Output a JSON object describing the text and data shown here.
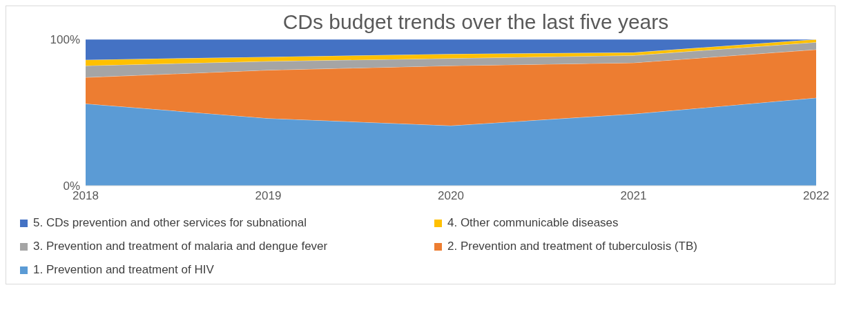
{
  "chart_data": {
    "type": "area",
    "stacked": true,
    "title": "CDs budget trends over the last five years",
    "categories": [
      "2018",
      "2019",
      "2020",
      "2021",
      "2022"
    ],
    "series": [
      {
        "name": "1. Prevention and treatment of HIV",
        "color": "#5b9bd5",
        "values": [
          56,
          46,
          41,
          49,
          60
        ]
      },
      {
        "name": "2. Prevention and treatment of tuberculosis (TB)",
        "color": "#ed7d31",
        "values": [
          18,
          33,
          41,
          35,
          33
        ]
      },
      {
        "name": "3. Prevention and treatment of malaria and dengue fever",
        "color": "#a5a5a5",
        "values": [
          8,
          6,
          5,
          5,
          5
        ]
      },
      {
        "name": "4. Other communicable diseases",
        "color": "#ffc000",
        "values": [
          4,
          3,
          3,
          2,
          2
        ]
      },
      {
        "name": "5. CDs prevention and other services for subnational",
        "color": "#4472c4",
        "values": [
          14,
          12,
          10,
          9,
          0
        ]
      }
    ],
    "ylim": [
      0,
      100
    ],
    "yticks": [
      {
        "value": 0,
        "label": "0%"
      },
      {
        "value": 100,
        "label": "100%"
      }
    ],
    "grid": false,
    "legend": "bottom"
  }
}
